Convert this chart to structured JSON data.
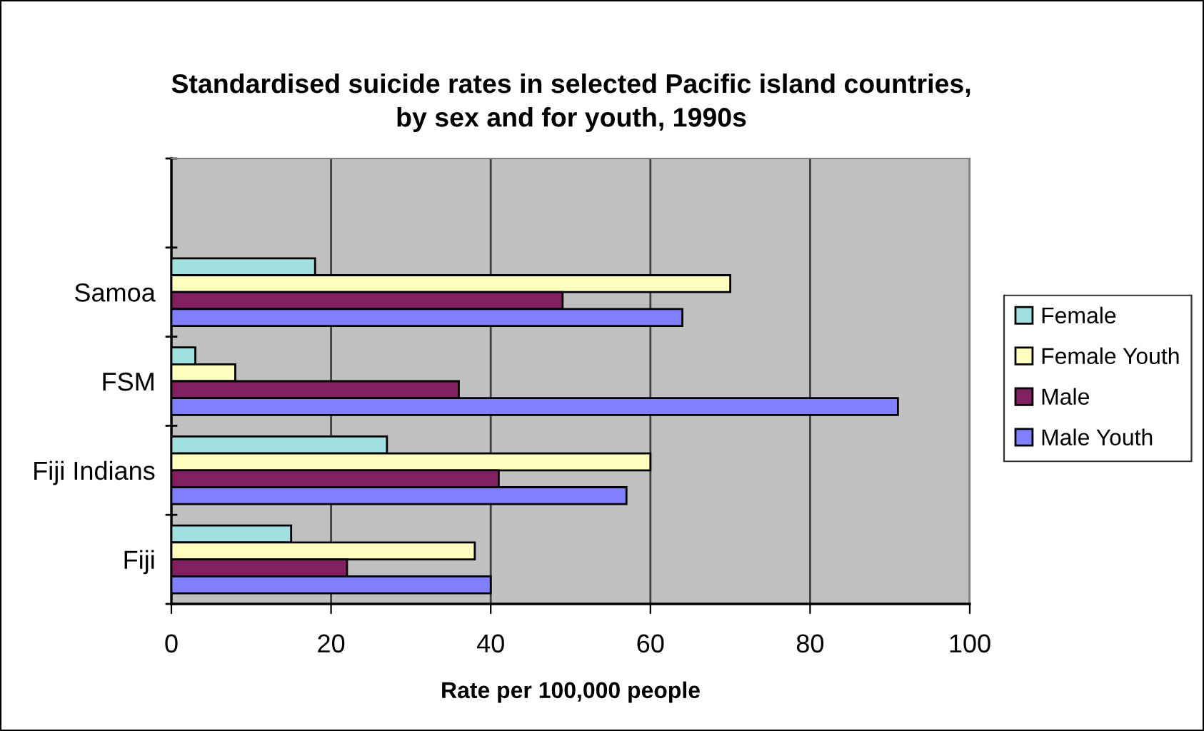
{
  "chart_data": {
    "type": "bar",
    "orientation": "horizontal",
    "title": "Standardised suicide rates in selected Pacific island countries,\nby sex and for youth, 1990s",
    "xlabel": "Rate per 100,000 people",
    "categories": [
      null,
      "Samoa",
      "FSM",
      "Fiji Indians",
      "Fiji"
    ],
    "series": [
      {
        "name": "Female",
        "color": "#a0e0e0",
        "values": [
          null,
          18,
          3,
          27,
          15
        ]
      },
      {
        "name": "Female Youth",
        "color": "#ffffc0",
        "values": [
          null,
          70,
          8,
          60,
          38
        ]
      },
      {
        "name": "Male",
        "color": "#802060",
        "values": [
          null,
          49,
          36,
          41,
          22
        ]
      },
      {
        "name": "Male Youth",
        "color": "#8080ff",
        "values": [
          null,
          64,
          91,
          57,
          40
        ]
      }
    ],
    "xlim": [
      0,
      100
    ],
    "xticks": [
      0,
      20,
      40,
      60,
      80,
      100
    ],
    "grid": "x",
    "legend": "right"
  }
}
